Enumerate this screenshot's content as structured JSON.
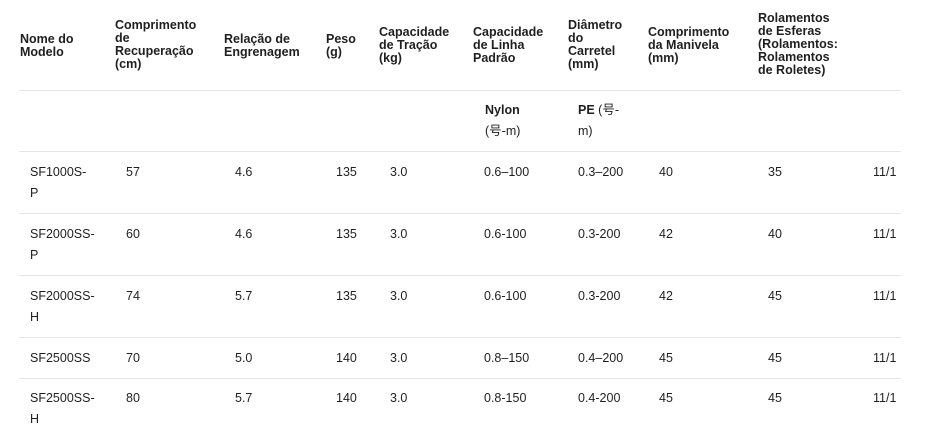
{
  "table": {
    "headers": [
      "Nome do\nModelo",
      "Comprimento\nde\nRecuperação\n(cm)",
      "Relação de\nEngrenagem",
      "Peso\n(g)",
      "Capacidade\nde Tração\n(kg)",
      "Capacidade\nde Linha\nPadrão",
      "Diâmetro\ndo\nCarretel\n(mm)",
      "Comprimento\nda Manivela\n(mm)",
      "Rolamentos\nde Esferas\n(Rolamentos:\nRolamentos\nde Roletes)"
    ],
    "subheader": {
      "nylon_label": "Nylon",
      "nylon_unit": "(号-m)",
      "pe_label": "PE",
      "pe_unit_a": " (号-",
      "pe_unit_b": "m)"
    },
    "rows": [
      {
        "model": "SF1000S-\nP",
        "retrieve": "57",
        "gear": "4.6",
        "weight": "135",
        "drag": "3.0",
        "nylon": "0.6–100",
        "pe": "0.3–200",
        "spool": "40",
        "handle": "35",
        "bearings": "11/1"
      },
      {
        "model": "SF2000SS-\nP",
        "retrieve": "60",
        "gear": "4.6",
        "weight": "135",
        "drag": "3.0",
        "nylon": "0.6-100",
        "pe": "0.3-200",
        "spool": "42",
        "handle": "40",
        "bearings": "11/1"
      },
      {
        "model": "SF2000SS-\nH",
        "retrieve": "74",
        "gear": "5.7",
        "weight": "135",
        "drag": "3.0",
        "nylon": "0.6-100",
        "pe": "0.3-200",
        "spool": "42",
        "handle": "45",
        "bearings": "11/1"
      },
      {
        "model": "SF2500SS",
        "retrieve": "70",
        "gear": "5.0",
        "weight": "140",
        "drag": "3.0",
        "nylon": "0.8–150",
        "pe": "0.4–200",
        "spool": "45",
        "handle": "45",
        "bearings": "11/1"
      },
      {
        "model": "SF2500SS-\nH",
        "retrieve": "80",
        "gear": "5.7",
        "weight": "140",
        "drag": "3.0",
        "nylon": "0.8-150",
        "pe": "0.4-200",
        "spool": "45",
        "handle": "45",
        "bearings": "11/1"
      }
    ]
  }
}
